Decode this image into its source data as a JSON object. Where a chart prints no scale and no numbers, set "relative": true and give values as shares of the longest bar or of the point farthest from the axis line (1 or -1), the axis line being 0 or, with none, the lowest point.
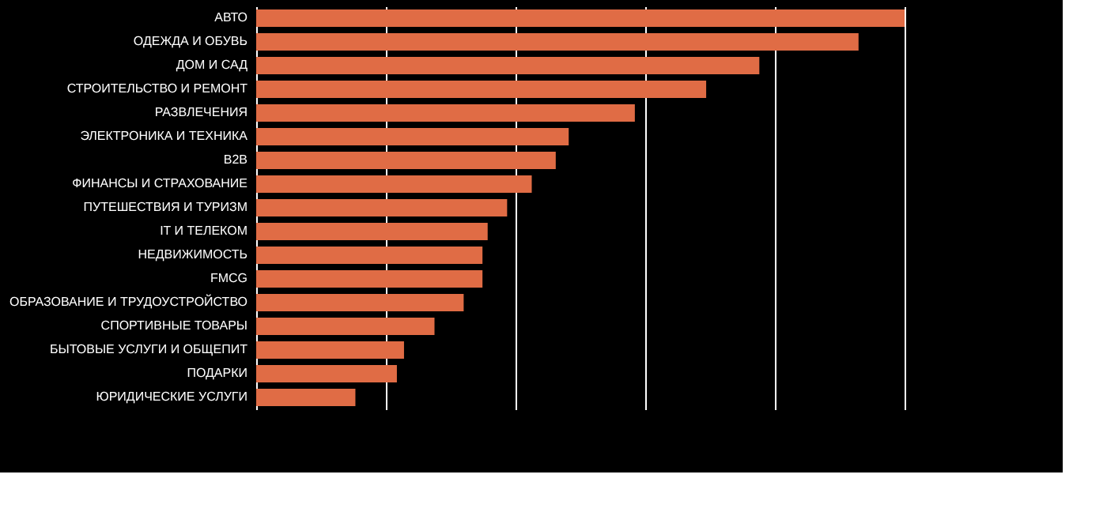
{
  "chart_data": {
    "type": "bar",
    "orientation": "horizontal",
    "relative": true,
    "grid": "x",
    "categories": [
      "АВТО",
      "ОДЕЖДА И ОБУВЬ",
      "ДОМ И САД",
      "СТРОИТЕЛЬСТВО И РЕМОНТ",
      "РАЗВЛЕЧЕНИЯ",
      "ЭЛЕКТРОНИКА И ТЕХНИКА",
      "B2B",
      "ФИНАНСЫ И СТРАХОВАНИЕ",
      "ПУТЕШЕСТВИЯ И ТУРИЗМ",
      "IT И ТЕЛЕКОМ",
      "НЕДВИЖИМОСТЬ",
      "FMCG",
      "ОБРАЗОВАНИЕ И ТРУДОУСТРОЙСТВО",
      "СПОРТИВНЫЕ ТОВАРЫ",
      "БЫТОВЫЕ УСЛУГИ И ОБЩЕПИТ",
      "ПОДАРКИ",
      "ЮРИДИЧЕСКИЕ УСЛУГИ"
    ],
    "values": [
      1,
      0.929,
      0.776,
      0.694,
      0.584,
      0.482,
      0.462,
      0.425,
      0.387,
      0.357,
      0.349,
      0.349,
      0.32,
      0.275,
      0.228,
      0.217,
      0.153
    ],
    "color": "#e06c45"
  }
}
